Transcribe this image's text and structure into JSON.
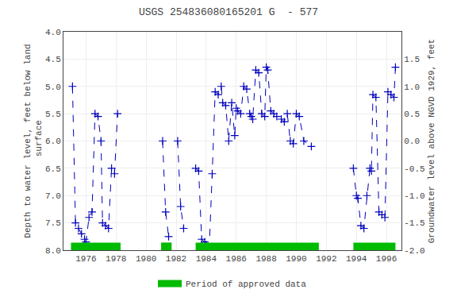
{
  "chart_data": {
    "type": "line",
    "title": "USGS 254836080165201 G  - 577",
    "y_label": "Depth to water level, feet below land\n surface",
    "y2_label": "Groundwater level above NGVD 1929, feet",
    "xlim": [
      1974.5,
      1997.0
    ],
    "xticks": [
      1976,
      1978,
      1980,
      1982,
      1984,
      1986,
      1988,
      1990,
      1992,
      1994,
      1996
    ],
    "ylim": [
      8.0,
      4.0
    ],
    "yticks": [
      {
        "value": 4.0,
        "label": "4.0"
      },
      4.5,
      {
        "value": 5.0,
        "label": "5.0"
      },
      5.5,
      {
        "value": 6.0,
        "label": "6.0"
      },
      6.5,
      {
        "value": 7.0,
        "label": "7.0"
      },
      7.5,
      {
        "value": 8.0,
        "label": "8.0"
      }
    ],
    "y2lim": [
      -2.0,
      2.0
    ],
    "y2ticks": [
      1.5,
      {
        "value": 1.0,
        "label": "1.0"
      },
      0.5,
      {
        "value": 0.0,
        "label": "0.0"
      },
      -0.5,
      {
        "value": -1.0,
        "label": "-1.0"
      },
      -1.5,
      {
        "value": -2.0,
        "label": "-2.0"
      }
    ],
    "grid": true,
    "legend": "bottom",
    "series": [
      {
        "type": "line",
        "color": "#0000bb",
        "marker": "plus",
        "line_style": "dashed",
        "x": [
          1975.1,
          1975.3,
          1975.5,
          1975.7,
          1975.9,
          1976.0,
          1976.2,
          1976.4,
          1976.6,
          1976.8,
          1977.0,
          1977.1,
          1977.3,
          1977.5,
          1977.7,
          1977.9,
          1978.1,
          null,
          1981.1,
          1981.3,
          1981.5,
          null,
          1982.1,
          1982.3,
          1982.5,
          null,
          1983.3,
          1983.5,
          1983.7,
          1983.9,
          1984.0,
          1984.2,
          1984.4,
          1984.6,
          1984.8,
          1985.0,
          1985.1,
          1985.3,
          1985.5,
          1985.7,
          1985.9,
          1986.0,
          1986.1,
          1986.3,
          1986.5,
          1986.7,
          1986.9,
          1987.0,
          1987.1,
          1987.3,
          1987.5,
          1987.7,
          1987.9,
          1988.0,
          1988.1,
          1988.3,
          1988.5,
          1988.7,
          1989.0,
          1989.2,
          1989.4,
          1989.6,
          1989.8,
          1990.0,
          1990.2,
          1990.5,
          1991.0,
          null,
          1993.8,
          1994.0,
          1994.1,
          1994.3,
          1994.5,
          1994.7,
          1994.9,
          1995.0,
          1995.1,
          1995.3,
          1995.5,
          1995.7,
          1995.9,
          1996.1,
          1996.3,
          1996.5,
          1996.6
        ],
        "values": [
          5.0,
          7.5,
          7.6,
          7.7,
          7.8,
          7.85,
          7.4,
          7.3,
          5.5,
          5.55,
          6.0,
          7.5,
          7.55,
          7.6,
          6.5,
          6.6,
          5.5,
          null,
          6.0,
          7.3,
          7.75,
          null,
          6.0,
          7.2,
          7.6,
          null,
          6.5,
          6.55,
          7.8,
          7.85,
          7.9,
          8.0,
          6.6,
          5.1,
          5.15,
          5.0,
          5.3,
          5.35,
          6.0,
          5.3,
          5.9,
          5.4,
          5.45,
          5.5,
          5.0,
          5.05,
          5.5,
          5.55,
          5.6,
          4.7,
          4.75,
          5.5,
          5.55,
          4.65,
          4.7,
          5.45,
          5.5,
          5.55,
          5.6,
          5.65,
          5.5,
          6.0,
          6.05,
          5.5,
          5.55,
          6.0,
          6.1,
          null,
          6.5,
          7.0,
          7.05,
          7.55,
          7.6,
          7.0,
          6.5,
          6.55,
          5.15,
          5.2,
          7.3,
          7.35,
          7.4,
          5.1,
          5.15,
          5.2,
          4.65
        ]
      },
      {
        "type": "period",
        "name": "Period of approved data",
        "color": "#00bb00",
        "periods": [
          [
            1975.0,
            1978.3
          ],
          [
            1981.0,
            1981.7
          ],
          [
            1983.3,
            1991.5
          ],
          [
            1993.8,
            1996.6
          ]
        ]
      }
    ]
  }
}
